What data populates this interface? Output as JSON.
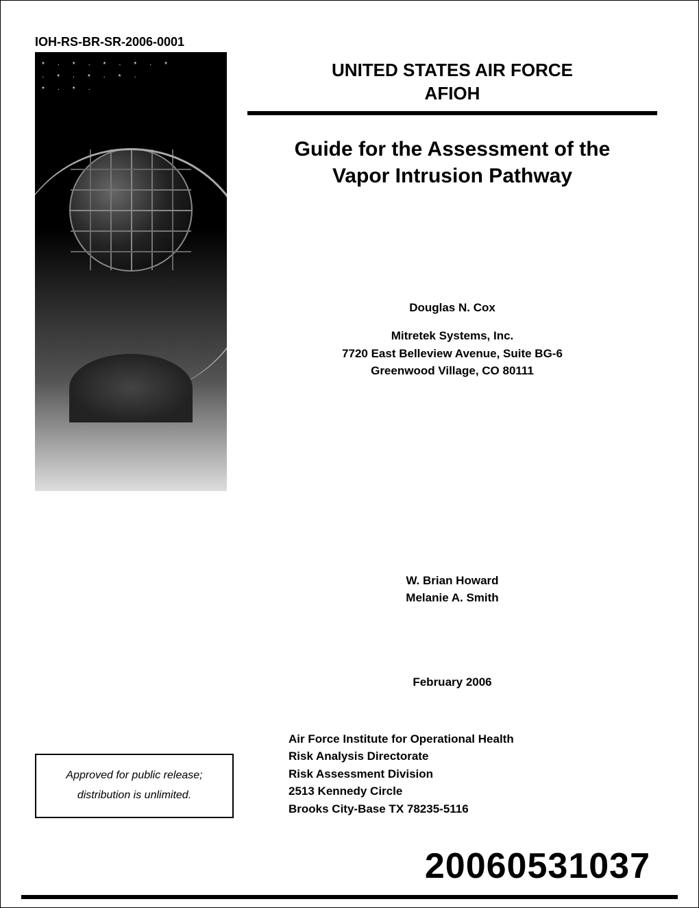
{
  "report_id": "IOH-RS-BR-SR-2006-0001",
  "header": {
    "org_line1": "UNITED STATES AIR FORCE",
    "org_line2": "AFIOH"
  },
  "title": {
    "line1": "Guide for the Assessment of the",
    "line2": "Vapor Intrusion Pathway"
  },
  "primary_author": "Douglas N. Cox",
  "affiliation": {
    "org": "Mitretek Systems, Inc.",
    "street": "7720 East Belleview Avenue, Suite BG-6",
    "city": "Greenwood Village, CO 80111"
  },
  "secondary_authors": {
    "a1": "W. Brian Howard",
    "a2": "Melanie A. Smith"
  },
  "pub_date": "February 2006",
  "institute": {
    "l1": "Air Force Institute for Operational Health",
    "l2": "Risk Analysis Directorate",
    "l3": "Risk Assessment Division",
    "l4": "2513 Kennedy Circle",
    "l5": "Brooks City-Base TX 78235-5116"
  },
  "release": {
    "l1": "Approved for public release;",
    "l2": "distribution is unlimited."
  },
  "accession_number": "20060531037",
  "colors": {
    "text": "#000000",
    "background": "#ffffff",
    "divider": "#000000"
  },
  "fonts": {
    "body_family": "Arial, Helvetica, sans-serif",
    "report_id_size": 18,
    "org_header_size": 26,
    "title_size": 30,
    "author_size": 17,
    "accession_size": 52
  }
}
